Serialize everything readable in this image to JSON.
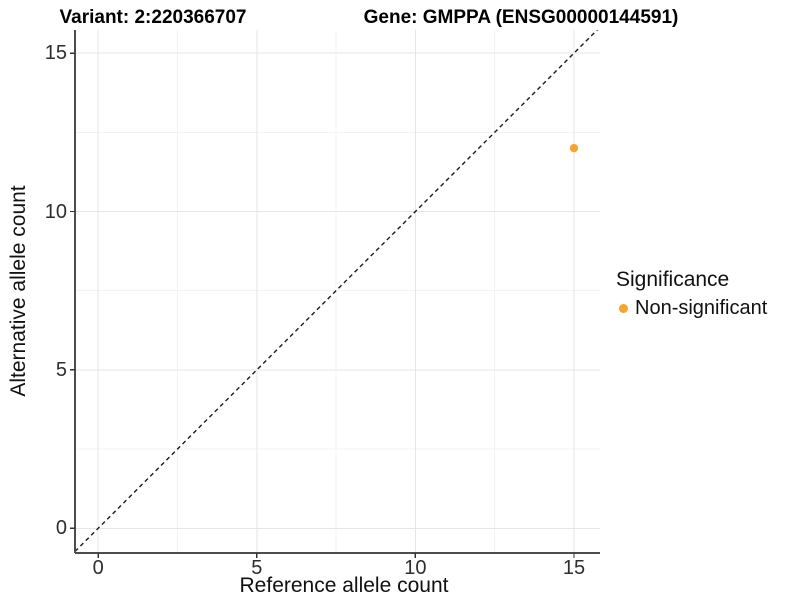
{
  "figure": {
    "title_left": "Variant: 2:220366707",
    "title_right": "Gene: GMPPA (ENSG00000144591)",
    "x_axis_label": "Reference allele count",
    "y_axis_label": "Alternative allele count"
  },
  "legend": {
    "title": "Significance",
    "items": [
      {
        "label": "Non-significant",
        "color": "#F9A22C"
      }
    ]
  },
  "chart_data": {
    "type": "scatter",
    "title": "Variant: 2:220366707   Gene: GMPPA (ENSG00000144591)",
    "xlabel": "Reference allele count",
    "ylabel": "Alternative allele count",
    "xlim": [
      -0.73,
      15.82
    ],
    "ylim": [
      -0.78,
      15.73
    ],
    "x_ticks": [
      0,
      5,
      10,
      15
    ],
    "y_ticks": [
      0,
      5,
      10,
      15
    ],
    "x_minor_ticks": [
      2.5,
      7.5,
      12.5
    ],
    "y_minor_ticks": [
      2.5,
      7.5,
      12.5
    ],
    "grid": true,
    "legend_position": "right",
    "legend_title": "Significance",
    "series": [
      {
        "name": "Non-significant",
        "color": "#F9A22C",
        "points": [
          {
            "x": 15,
            "y": 12
          }
        ]
      }
    ],
    "reference_line": {
      "kind": "identity",
      "slope": 1,
      "intercept": 0,
      "style": "dashed",
      "color": "#1a1a1a"
    },
    "style": {
      "background": "#ffffff",
      "grid_major": "#e6e6e6",
      "grid_minor": "#f3f3f3",
      "axis_line": "#4d4d4d",
      "tick_mark": "#333333",
      "point_color": "#F9A22C"
    }
  }
}
